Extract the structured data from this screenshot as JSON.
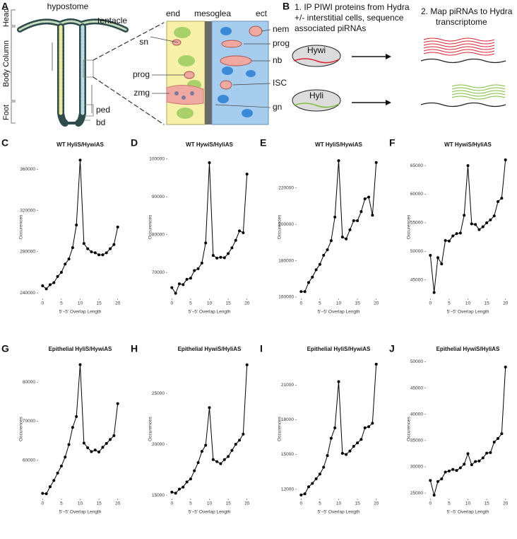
{
  "panel_a": {
    "letter": "A",
    "regions": [
      "Head",
      "Body Column",
      "Foot"
    ],
    "hypostome": "hypostome",
    "tentacle": "tentacle",
    "ped": "ped",
    "bd": "bd",
    "layers": [
      "end",
      "mesoglea",
      "ect"
    ],
    "left_cells": [
      "sn",
      "prog",
      "zmg"
    ],
    "right_cells": [
      "nem",
      "prog",
      "nb",
      "ISC",
      "gn"
    ]
  },
  "panel_b": {
    "letter": "B",
    "step1": [
      "1. IP PIWI proteins from Hydra",
      "+/- interstitial cells, sequence",
      "associated piRNAs"
    ],
    "step2": [
      "2. Map piRNAs to Hydra",
      "transcriptome"
    ],
    "proteins": [
      "Hywi",
      "Hyli"
    ]
  },
  "chart_data": [
    {
      "type": "line",
      "panel": "C",
      "title": "WT HyliS/HywiAS",
      "xlabel": "5'−5' Overlap Length",
      "ylabel": "Occurences",
      "color": "#000000",
      "x": [
        0,
        1,
        2,
        3,
        4,
        5,
        6,
        7,
        8,
        9,
        10,
        11,
        12,
        13,
        14,
        15,
        16,
        17,
        18,
        19,
        20
      ],
      "values": [
        247000,
        244000,
        248000,
        250000,
        256000,
        260000,
        268000,
        273000,
        284000,
        306000,
        369000,
        288000,
        283000,
        280000,
        279000,
        277000,
        277000,
        279000,
        283000,
        287000,
        304000
      ],
      "xlim": [
        -1,
        21
      ],
      "ylim": [
        236000,
        372000
      ],
      "xticks": [
        0,
        5,
        10,
        15,
        20
      ],
      "yticks": [
        240000,
        280000,
        320000,
        360000
      ]
    },
    {
      "type": "line",
      "panel": "D",
      "title": "WT HywiS/HyliAS",
      "xlabel": "5'−5' Overlap Length",
      "ylabel": "Occurences",
      "color": "#000000",
      "x": [
        0,
        1,
        2,
        3,
        4,
        5,
        6,
        7,
        8,
        9,
        10,
        11,
        12,
        13,
        14,
        15,
        16,
        17,
        18,
        19,
        20
      ],
      "values": [
        66000,
        64500,
        67000,
        66800,
        68200,
        68500,
        70500,
        71000,
        72500,
        77800,
        99000,
        74500,
        73800,
        74000,
        73900,
        75000,
        76500,
        78500,
        81000,
        80500,
        96000
      ],
      "xlim": [
        -1,
        21
      ],
      "ylim": [
        63500,
        100500
      ],
      "xticks": [
        0,
        5,
        10,
        15,
        20
      ],
      "yticks": [
        70000,
        80000,
        90000,
        100000
      ]
    },
    {
      "type": "line",
      "panel": "E",
      "title": "WT HyliS/HywiAS",
      "xlabel": "5'−5' Overlap Length",
      "ylabel": "Occurences",
      "color": "#000000",
      "x": [
        0,
        1,
        2,
        3,
        4,
        5,
        6,
        7,
        8,
        9,
        10,
        11,
        12,
        13,
        14,
        15,
        16,
        17,
        18,
        19,
        20
      ],
      "values": [
        163000,
        163000,
        168000,
        171000,
        175000,
        178000,
        183000,
        186000,
        191000,
        204000,
        235000,
        193000,
        192000,
        197000,
        202000,
        202000,
        207000,
        214000,
        215000,
        205000,
        234000
      ],
      "xlim": [
        -1,
        21
      ],
      "ylim": [
        160000,
        237000
      ],
      "xticks": [
        0,
        5,
        10,
        15,
        20
      ],
      "yticks": [
        160000,
        180000,
        200000,
        220000
      ]
    },
    {
      "type": "line",
      "panel": "F",
      "title": "WT HywiS/HyliAS",
      "xlabel": "5'−5' Overlap Length",
      "ylabel": "Occurences",
      "color": "#000000",
      "x": [
        0,
        1,
        2,
        3,
        4,
        5,
        6,
        7,
        8,
        9,
        10,
        11,
        12,
        13,
        14,
        15,
        16,
        17,
        18,
        19,
        20
      ],
      "values": [
        49300,
        42800,
        48900,
        47800,
        51900,
        51800,
        52700,
        53100,
        53200,
        56300,
        65000,
        54800,
        54700,
        53800,
        54300,
        55000,
        55500,
        56200,
        58700,
        59300,
        66000
      ],
      "xlim": [
        -1,
        21
      ],
      "ylim": [
        42000,
        66500
      ],
      "xticks": [
        0,
        5,
        10,
        15,
        20
      ],
      "yticks": [
        45000,
        50000,
        55000,
        60000,
        65000
      ]
    },
    {
      "type": "line",
      "panel": "G",
      "title": "Epithelial HyliS/HywiAS",
      "xlabel": "5'−5' Overlap Length",
      "ylabel": "Occurences",
      "color": "#000000",
      "x": [
        0,
        1,
        2,
        3,
        4,
        5,
        6,
        7,
        8,
        9,
        10,
        11,
        12,
        13,
        14,
        15,
        16,
        17,
        18,
        19,
        20
      ],
      "values": [
        51500,
        51400,
        53200,
        54800,
        56700,
        58500,
        60800,
        64000,
        68400,
        71200,
        84500,
        64400,
        63200,
        62200,
        62600,
        62100,
        63300,
        64300,
        65300,
        66300,
        74500
      ],
      "xlim": [
        -1,
        21
      ],
      "ylim": [
        50500,
        85500
      ],
      "xticks": [
        0,
        5,
        10,
        15,
        20
      ],
      "yticks": [
        60000,
        70000,
        80000
      ]
    },
    {
      "type": "line",
      "panel": "H",
      "title": "Epithelial HywiS/HyliAS",
      "xlabel": "5'−5' Overlap Length",
      "ylabel": "Occurences",
      "color": "#000000",
      "x": [
        0,
        1,
        2,
        3,
        4,
        5,
        6,
        7,
        8,
        9,
        10,
        11,
        12,
        13,
        14,
        15,
        16,
        17,
        18,
        19,
        20
      ],
      "values": [
        15300,
        15200,
        15600,
        15800,
        16300,
        16600,
        17400,
        18200,
        19300,
        19900,
        23600,
        18500,
        18300,
        18100,
        18500,
        18800,
        19400,
        20000,
        20400,
        21000,
        27800
      ],
      "xlim": [
        -1,
        21
      ],
      "ylim": [
        14800,
        28200
      ],
      "xticks": [
        0,
        5,
        10,
        15,
        20
      ],
      "yticks": [
        15000,
        20000,
        25000
      ]
    },
    {
      "type": "line",
      "panel": "I",
      "title": "Epithelial HyliS/HywiAS",
      "xlabel": "5'−5' Overlap Length",
      "ylabel": "Occurences",
      "color": "#000000",
      "x": [
        0,
        1,
        2,
        3,
        4,
        5,
        6,
        7,
        8,
        9,
        10,
        11,
        12,
        13,
        14,
        15,
        16,
        17,
        18,
        19,
        20
      ],
      "values": [
        11500,
        11600,
        12200,
        12500,
        12900,
        13300,
        13900,
        14900,
        16400,
        17300,
        21300,
        15100,
        15000,
        15300,
        15700,
        16000,
        16300,
        17300,
        17400,
        17700,
        22800
      ],
      "xlim": [
        -1,
        21
      ],
      "ylim": [
        11300,
        23100
      ],
      "xticks": [
        0,
        5,
        10,
        15,
        20
      ],
      "yticks": [
        12000,
        15000,
        18000,
        21000
      ]
    },
    {
      "type": "line",
      "panel": "J",
      "title": "Epithelial HywiS/HyliAS",
      "xlabel": "5'−5' Overlap Length",
      "ylabel": "Occurences",
      "color": "#000000",
      "x": [
        0,
        1,
        2,
        3,
        4,
        5,
        6,
        7,
        8,
        9,
        10,
        11,
        12,
        13,
        14,
        15,
        16,
        17,
        18,
        19,
        20
      ],
      "values": [
        27400,
        24600,
        27200,
        27700,
        29000,
        29200,
        29500,
        29300,
        29800,
        30500,
        32500,
        30400,
        31000,
        31100,
        31700,
        32600,
        32700,
        34700,
        35400,
        36300,
        49000
      ],
      "xlim": [
        -1,
        21
      ],
      "ylim": [
        24200,
        50200
      ],
      "xticks": [
        0,
        5,
        10,
        15,
        20
      ],
      "yticks": [
        25000,
        30000,
        35000,
        40000,
        45000,
        50000
      ]
    }
  ]
}
